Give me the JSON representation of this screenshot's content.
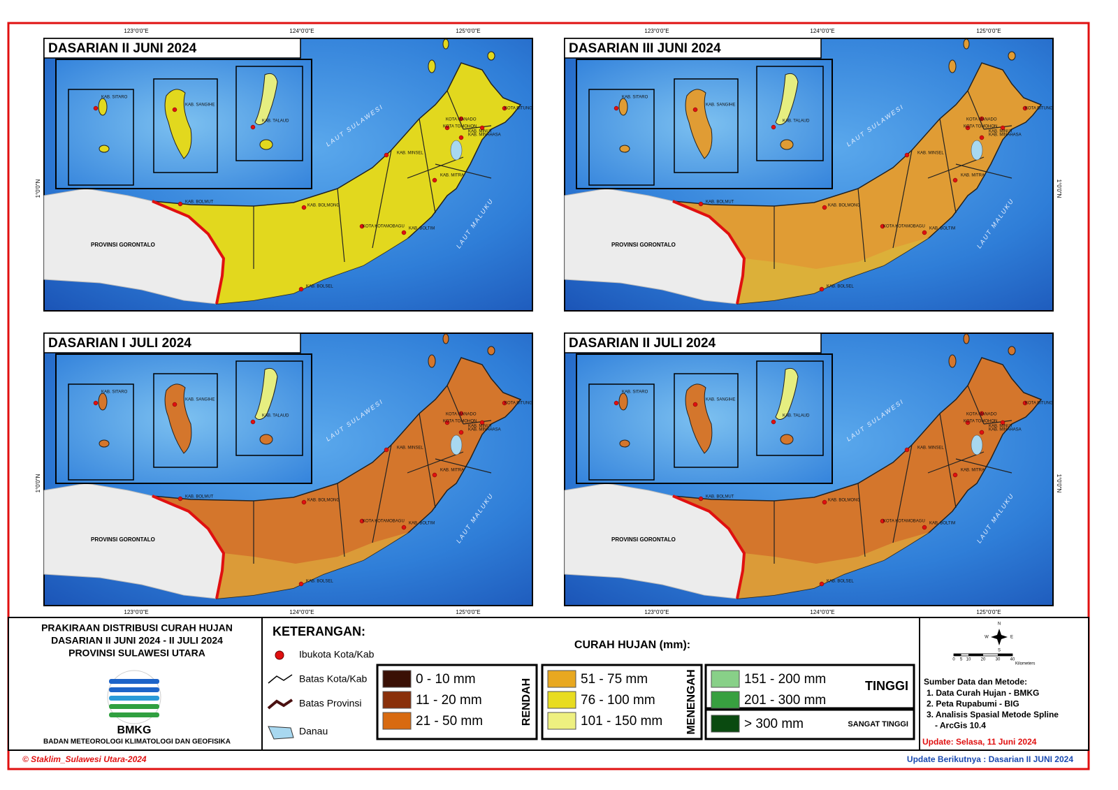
{
  "panels": [
    {
      "title": "DASARIAN II JUNI 2024",
      "fill": "#e2d81e",
      "fill_south": "#e2d81e"
    },
    {
      "title": "DASARIAN III JUNI 2024",
      "fill": "#e09c34",
      "fill_south": "#dcb23a"
    },
    {
      "title": "DASARIAN I JULI 2024",
      "fill": "#d4762c",
      "fill_south": "#dca03a"
    },
    {
      "title": "DASARIAN II JULI 2024",
      "fill": "#d4762c",
      "fill_south": "#dca03a"
    }
  ],
  "longitude_labels": [
    "123°0'0\"E",
    "124°0'0\"E",
    "125°0'0\"E"
  ],
  "latitude_label": "1°0'0\"N",
  "places": [
    "KAB. SITARO",
    "KAB. SANGIHE",
    "KAB. TALAUD",
    "KOTA MANADO",
    "KAB. MINUT",
    "KOTA BITUNG",
    "KOTA TOMOHON",
    "KAB. MINAHASA",
    "KAB. MINSEL",
    "KAB. MITRA",
    "KAB. BOLMUT",
    "KAB. BOLMONG",
    "KOTA KOTAMOBAGU",
    "KAB. BOLTIM",
    "KAB. BOLSEL"
  ],
  "regions": [
    "PROVINSI GORONTALO",
    "LAUT SULAWESI",
    "LAUT MALUKU"
  ],
  "legend": {
    "title_lines": [
      "PRAKIRAAN DISTRIBUSI CURAH HUJAN",
      "DASARIAN II JUNI 2024 - II JULI 2024",
      "PROVINSI SULAWESI UTARA"
    ],
    "logo_text": "BMKG",
    "agency": "BADAN METEOROLOGI KLIMATOLOGI DAN GEOFISIKA",
    "heading": "KETERANGAN:",
    "symbols": [
      "Ibukota Kota/Kab",
      "Batas Kota/Kab",
      "Batas Provinsi",
      "Danau"
    ],
    "rain_heading": "CURAH HUJAN (mm):",
    "groups": [
      {
        "label": "RENDAH",
        "classes": [
          {
            "range": "0 - 10 mm",
            "color": "#3a1005"
          },
          {
            "range": "11 - 20 mm",
            "color": "#8a300a"
          },
          {
            "range": "21 - 50 mm",
            "color": "#d86a10"
          }
        ]
      },
      {
        "label": "MENENGAH",
        "classes": [
          {
            "range": "51 - 75 mm",
            "color": "#e8a820"
          },
          {
            "range": "76 - 100 mm",
            "color": "#e8dc20"
          },
          {
            "range": "101 - 150 mm",
            "color": "#eef080"
          }
        ]
      },
      {
        "label": "TINGGI",
        "classes": [
          {
            "range": "151 - 200 mm",
            "color": "#88d088"
          },
          {
            "range": "201 - 300 mm",
            "color": "#38a040"
          }
        ]
      },
      {
        "label": "SANGAT TINGGI",
        "classes": [
          {
            "range": "> 300 mm",
            "color": "#0a4a10"
          }
        ]
      }
    ],
    "scale_ticks": [
      0,
      5,
      10,
      20,
      30,
      40
    ],
    "scale_unit": "Kilometers",
    "compass": [
      "N",
      "E",
      "S",
      "W"
    ],
    "sources_heading": "Sumber Data dan Metode:",
    "sources": [
      "1. Data Curah Hujan - BMKG",
      "2. Peta Rupabumi - BIG",
      "3. Analisis Spasial Metode Spline",
      "- ArcGis 10.4"
    ],
    "update": "Update: Selasa, 11 Juni 2024"
  },
  "footer": {
    "copyright": "© Staklim_Sulawesi Utara-2024",
    "next_update": "Update Berikutnya : Dasarian II JUNI 2024"
  }
}
